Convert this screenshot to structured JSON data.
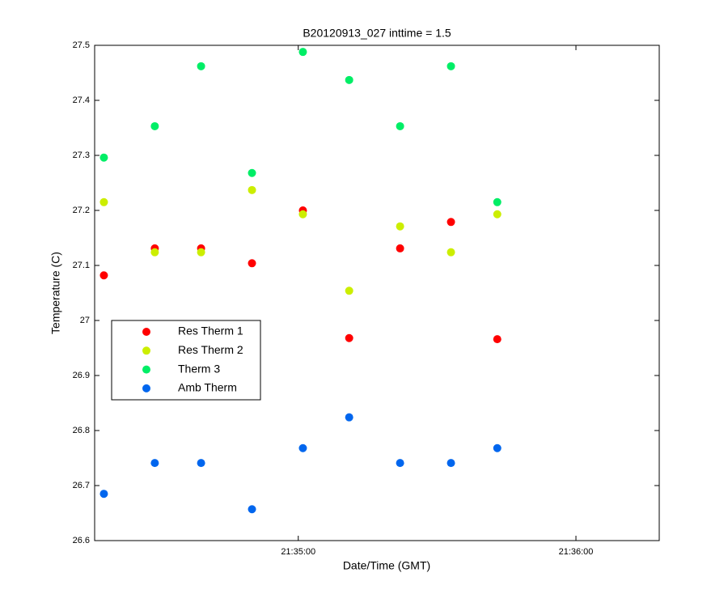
{
  "chart_data": {
    "type": "scatter",
    "title": "B20120913_027 inttime = 1.5",
    "xlabel": "Date/Time (GMT)",
    "ylabel": "Temperature (C)",
    "x": [
      "21:34:18",
      "21:34:29",
      "21:34:39",
      "21:34:50",
      "21:35:01",
      "21:35:11",
      "21:35:22",
      "21:35:33",
      "21:35:43"
    ],
    "series": [
      {
        "name": "Res Therm 1",
        "color": "#ff0000",
        "values": [
          27.082,
          27.131,
          27.131,
          27.104,
          27.2,
          26.968,
          27.131,
          27.179,
          26.966
        ]
      },
      {
        "name": "Res Therm 2",
        "color": "#ccee00",
        "values": [
          27.215,
          27.124,
          27.124,
          27.237,
          27.193,
          27.054,
          27.171,
          27.124,
          27.193
        ]
      },
      {
        "name": "Therm 3",
        "color": "#00ee66",
        "values": [
          27.296,
          27.353,
          27.462,
          27.268,
          27.488,
          27.437,
          27.353,
          27.462,
          27.215
        ]
      },
      {
        "name": "Amb Therm",
        "color": "#0066ee",
        "values": [
          26.685,
          26.741,
          26.741,
          26.657,
          26.768,
          26.824,
          26.741,
          26.741,
          26.768
        ]
      }
    ],
    "xlim": [
      "21:34:16",
      "21:36:18"
    ],
    "xticks": [
      "21:35:00",
      "21:36:00"
    ],
    "ylim": [
      26.6,
      27.5
    ],
    "yticks": [
      26.6,
      26.7,
      26.8,
      26.9,
      27,
      27.1,
      27.2,
      27.3,
      27.4,
      27.5
    ],
    "legend": "lower-left"
  }
}
